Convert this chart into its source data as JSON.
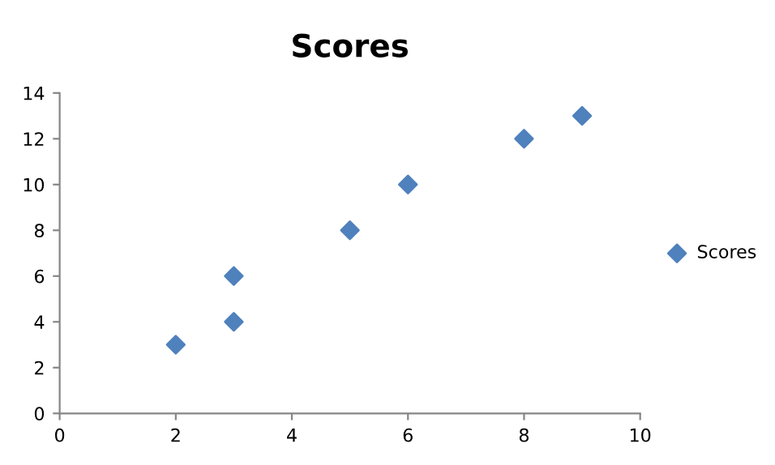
{
  "chart_data": {
    "type": "scatter",
    "title": "Scores",
    "x": [
      2,
      3,
      3,
      5,
      6,
      8,
      9
    ],
    "series": [
      {
        "name": "Scores",
        "color": "#4f81bd",
        "values": [
          3,
          4,
          6,
          8,
          10,
          12,
          13
        ]
      }
    ],
    "xlim": [
      0,
      10
    ],
    "xticks": [
      0,
      2,
      4,
      6,
      8,
      10
    ],
    "ylim": [
      0,
      14
    ],
    "yticks": [
      0,
      2,
      4,
      6,
      8,
      10,
      12,
      14
    ],
    "grid": false,
    "legend": "right",
    "marker": "diamond"
  }
}
